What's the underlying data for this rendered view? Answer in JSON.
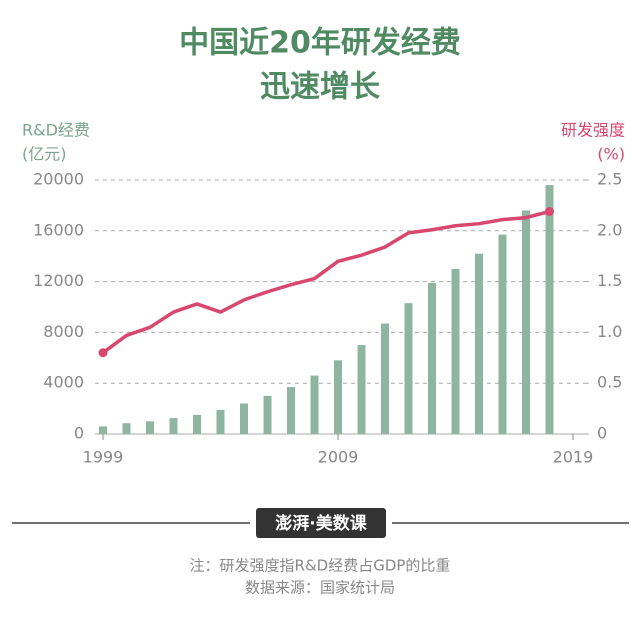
{
  "chart_data": {
    "type": "bar-line",
    "title": "中国近20年研发经费",
    "subtitle": "迅速增长",
    "y_label": "R&D经费",
    "y_unit": "(亿元)",
    "y2_label": "研发强度",
    "y2_unit": "(%)",
    "x": [
      1999,
      2000,
      2001,
      2002,
      2003,
      2004,
      2005,
      2006,
      2007,
      2008,
      2009,
      2010,
      2011,
      2012,
      2013,
      2014,
      2015,
      2016,
      2017,
      2018
    ],
    "series": [
      {
        "name": "R&D经费",
        "color": "#8db5a0",
        "values": [
          600,
          850,
          1000,
          1250,
          1500,
          1900,
          2400,
          3000,
          3700,
          4600,
          5800,
          7000,
          8700,
          10300,
          11900,
          13000,
          14200,
          15700,
          17600,
          19600
        ]
      },
      {
        "name": "研发强度",
        "color": "#d9466e",
        "axis": "y2",
        "values": [
          0.8,
          0.97,
          1.05,
          1.2,
          1.28,
          1.2,
          1.32,
          1.4,
          1.47,
          1.53,
          1.7,
          1.76,
          1.84,
          1.98,
          2.01,
          2.05,
          2.07,
          2.11,
          2.13,
          2.19
        ]
      }
    ],
    "xlim": [
      1999,
      2019
    ],
    "xticks": [
      1999,
      2009,
      2019
    ],
    "ylim": [
      0,
      20000
    ],
    "yticks": [
      0,
      4000,
      8000,
      12000,
      16000,
      20000
    ],
    "y2lim": [
      0,
      2.5
    ],
    "y2ticks": [
      {
        "value": 0,
        "label": "0"
      },
      {
        "value": 0.5,
        "label": "0.5"
      },
      {
        "value": 1,
        "label": "1.0"
      },
      {
        "value": 1.5,
        "label": "1.5"
      },
      {
        "value": 2,
        "label": "2.0"
      },
      {
        "value": 2.5,
        "label": "2.5"
      }
    ],
    "grid": true,
    "logo": "澎湃·美数课",
    "note": "注：研发强度指R&D经费占GDP的比重",
    "source": "数据来源：国家统计局"
  }
}
